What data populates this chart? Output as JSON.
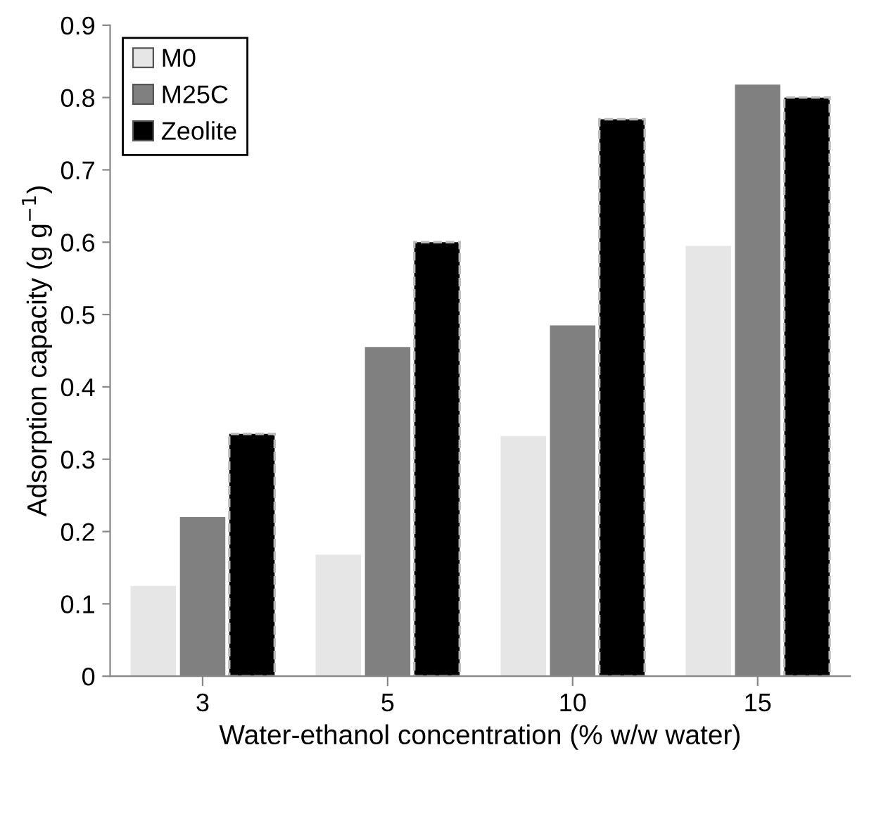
{
  "chart_data": {
    "type": "bar",
    "xlabel": "Water-ethanol concentration (% w/w water)",
    "ylabel": "Adsorption capacity (g g$^{−1}$)",
    "categories": [
      "3",
      "5",
      "10",
      "15"
    ],
    "series": [
      {
        "name": "M0",
        "color": "#e6e6e6",
        "values": [
          0.125,
          0.168,
          0.332,
          0.595
        ]
      },
      {
        "name": "M25C",
        "color": "#808080",
        "values": [
          0.22,
          0.455,
          0.485,
          0.818
        ]
      },
      {
        "name": "Zeolite",
        "color": "#000000",
        "values": [
          0.335,
          0.6,
          0.77,
          0.8
        ]
      }
    ],
    "ylim": [
      0,
      0.9
    ],
    "yticks": [
      0,
      0.1,
      0.2,
      0.3,
      0.4,
      0.5,
      0.6,
      0.7,
      0.8,
      0.9
    ],
    "grid": false,
    "legend": "top left"
  }
}
